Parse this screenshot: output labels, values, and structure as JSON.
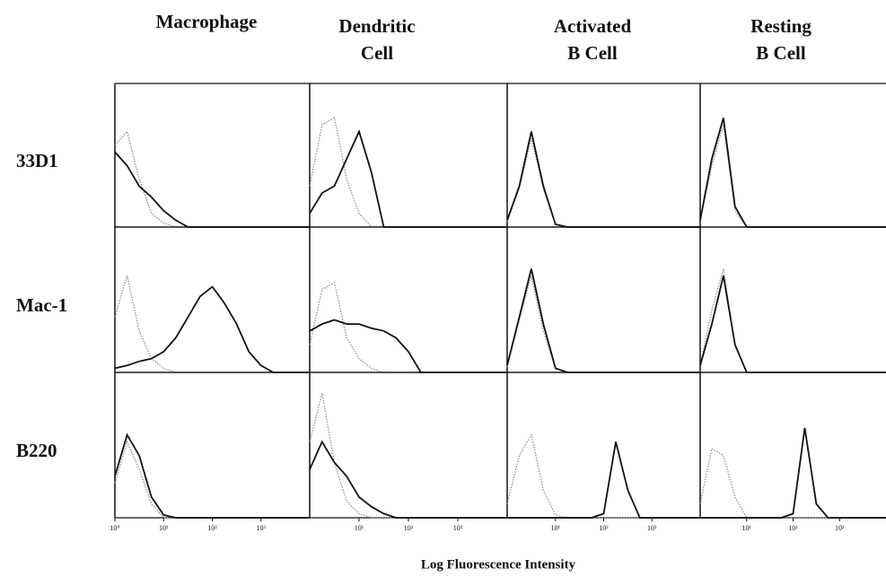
{
  "column_headers": [
    [
      "Macrophage"
    ],
    [
      "Dendritic",
      "Cell"
    ],
    [
      "Activated",
      "B Cell"
    ],
    [
      "Resting",
      "B Cell"
    ]
  ],
  "row_labels": [
    "33D1",
    "Mac-1",
    "B220"
  ],
  "xlabel": "Log Fluorescence Intensity",
  "chart_data": [
    {
      "type": "line",
      "log_x": true,
      "xlim": [
        1,
        10000
      ],
      "ylim": [
        0,
        100
      ],
      "x": [
        1,
        1.78,
        3.16,
        5.62,
        10,
        17.8,
        31.6,
        56.2,
        100,
        178,
        316,
        562,
        1000,
        1780,
        3160,
        5620,
        10000
      ],
      "series": [
        {
          "color": "#888888",
          "style": "dotted",
          "values": [
            60,
            70,
            35,
            10,
            3,
            0,
            0,
            0,
            0,
            0,
            0,
            0,
            0,
            0,
            0,
            0,
            0
          ]
        },
        {
          "color": "#111111",
          "style": "solid",
          "values": [
            55,
            45,
            30,
            22,
            12,
            5,
            0,
            0,
            0,
            0,
            0,
            0,
            0,
            0,
            0,
            0,
            0
          ]
        }
      ]
    },
    {
      "type": "line",
      "log_x": true,
      "xlim": [
        1,
        10000
      ],
      "ylim": [
        0,
        100
      ],
      "x": [
        1,
        1.78,
        3.16,
        5.62,
        10,
        17.8,
        31.6,
        56.2,
        100,
        178,
        316,
        562,
        1000,
        1780,
        3160,
        5620,
        10000
      ],
      "series": [
        {
          "color": "#888888",
          "style": "dotted",
          "values": [
            30,
            75,
            80,
            35,
            10,
            0,
            0,
            0,
            0,
            0,
            0,
            0,
            0,
            0,
            0,
            0,
            0
          ]
        },
        {
          "color": "#111111",
          "style": "solid",
          "values": [
            10,
            25,
            30,
            50,
            70,
            40,
            0,
            0,
            0,
            0,
            0,
            0,
            0,
            0,
            0,
            0,
            0
          ]
        }
      ]
    },
    {
      "type": "line",
      "log_x": true,
      "xlim": [
        1,
        10000
      ],
      "ylim": [
        0,
        100
      ],
      "x": [
        1,
        1.78,
        3.16,
        5.62,
        10,
        17.8,
        31.6,
        56.2,
        100,
        178,
        316,
        562,
        1000,
        1780,
        3160,
        5620,
        10000
      ],
      "series": [
        {
          "color": "#888888",
          "style": "dotted",
          "values": [
            4,
            28,
            65,
            28,
            2,
            0,
            0,
            0,
            0,
            0,
            0,
            0,
            0,
            0,
            0,
            0,
            0
          ]
        },
        {
          "color": "#111111",
          "style": "solid",
          "values": [
            5,
            30,
            70,
            30,
            2,
            0,
            0,
            0,
            0,
            0,
            0,
            0,
            0,
            0,
            0,
            0,
            0
          ]
        }
      ]
    },
    {
      "type": "line",
      "log_x": true,
      "xlim": [
        1,
        10000
      ],
      "ylim": [
        0,
        100
      ],
      "x": [
        1,
        1.78,
        3.16,
        5.62,
        10,
        17.8,
        31.6,
        56.2,
        100,
        178,
        316,
        562,
        1000,
        1780,
        3160,
        5620,
        10000
      ],
      "series": [
        {
          "color": "#888888",
          "style": "dotted",
          "values": [
            5,
            45,
            75,
            12,
            0,
            0,
            0,
            0,
            0,
            0,
            0,
            0,
            0,
            0,
            0,
            0,
            0
          ]
        },
        {
          "color": "#111111",
          "style": "solid",
          "values": [
            5,
            50,
            80,
            15,
            0,
            0,
            0,
            0,
            0,
            0,
            0,
            0,
            0,
            0,
            0,
            0,
            0
          ]
        }
      ]
    },
    {
      "type": "line",
      "log_x": true,
      "xlim": [
        1,
        10000
      ],
      "ylim": [
        0,
        100
      ],
      "x": [
        1,
        1.78,
        3.16,
        5.62,
        10,
        17.8,
        31.6,
        56.2,
        100,
        178,
        316,
        562,
        1000,
        1780,
        3160,
        5620,
        10000
      ],
      "series": [
        {
          "color": "#888888",
          "style": "dotted",
          "values": [
            40,
            70,
            30,
            10,
            3,
            0,
            0,
            0,
            0,
            0,
            0,
            0,
            0,
            0,
            0,
            0,
            0
          ]
        },
        {
          "color": "#111111",
          "style": "solid",
          "values": [
            3,
            5,
            8,
            10,
            15,
            25,
            40,
            55,
            62,
            50,
            35,
            15,
            5,
            0,
            0,
            0,
            0
          ]
        }
      ]
    },
    {
      "type": "line",
      "log_x": true,
      "xlim": [
        1,
        10000
      ],
      "ylim": [
        0,
        100
      ],
      "x": [
        1,
        1.78,
        3.16,
        5.62,
        10,
        17.8,
        31.6,
        56.2,
        100,
        178,
        316,
        562,
        1000,
        1780,
        3160,
        5620,
        10000
      ],
      "series": [
        {
          "color": "#888888",
          "style": "dotted",
          "values": [
            20,
            60,
            65,
            25,
            10,
            3,
            0,
            0,
            0,
            0,
            0,
            0,
            0,
            0,
            0,
            0,
            0
          ]
        },
        {
          "color": "#111111",
          "style": "solid",
          "values": [
            30,
            35,
            38,
            35,
            35,
            32,
            30,
            25,
            15,
            0,
            0,
            0,
            0,
            0,
            0,
            0,
            0
          ]
        }
      ]
    },
    {
      "type": "line",
      "log_x": true,
      "xlim": [
        1,
        10000
      ],
      "ylim": [
        0,
        100
      ],
      "x": [
        1,
        1.78,
        3.16,
        5.62,
        10,
        17.8,
        31.6,
        56.2,
        100,
        178,
        316,
        562,
        1000,
        1780,
        3160,
        5620,
        10000
      ],
      "series": [
        {
          "color": "#888888",
          "style": "dotted",
          "values": [
            4,
            38,
            70,
            30,
            3,
            0,
            0,
            0,
            0,
            0,
            0,
            0,
            0,
            0,
            0,
            0,
            0
          ]
        },
        {
          "color": "#111111",
          "style": "solid",
          "values": [
            5,
            40,
            75,
            35,
            3,
            0,
            0,
            0,
            0,
            0,
            0,
            0,
            0,
            0,
            0,
            0,
            0
          ]
        }
      ]
    },
    {
      "type": "line",
      "log_x": true,
      "xlim": [
        1,
        10000
      ],
      "ylim": [
        0,
        100
      ],
      "x": [
        1,
        1.78,
        3.16,
        5.62,
        10,
        17.8,
        31.6,
        56.2,
        100,
        178,
        316,
        562,
        1000,
        1780,
        3160,
        5620,
        10000
      ],
      "series": [
        {
          "color": "#888888",
          "style": "dotted",
          "values": [
            5,
            45,
            75,
            20,
            0,
            0,
            0,
            0,
            0,
            0,
            0,
            0,
            0,
            0,
            0,
            0,
            0
          ]
        },
        {
          "color": "#111111",
          "style": "solid",
          "values": [
            5,
            35,
            70,
            20,
            0,
            0,
            0,
            0,
            0,
            0,
            0,
            0,
            0,
            0,
            0,
            0,
            0
          ]
        }
      ]
    },
    {
      "type": "line",
      "log_x": true,
      "xlim": [
        1,
        10000
      ],
      "ylim": [
        0,
        100
      ],
      "xticks": [
        {
          "value": 1,
          "label": "10⁰"
        },
        {
          "value": 10,
          "label": "10¹"
        },
        {
          "value": 100,
          "label": "10²"
        },
        {
          "value": 1000,
          "label": "10³"
        }
      ],
      "x": [
        1,
        1.78,
        3.16,
        5.62,
        10,
        17.8,
        31.6,
        56.2,
        100,
        178,
        316,
        562,
        1000,
        1780,
        3160,
        5620,
        10000
      ],
      "series": [
        {
          "color": "#888888",
          "style": "dotted",
          "values": [
            25,
            55,
            35,
            10,
            0,
            0,
            0,
            0,
            0,
            0,
            0,
            0,
            0,
            0,
            0,
            0,
            0
          ]
        },
        {
          "color": "#111111",
          "style": "solid",
          "values": [
            30,
            60,
            45,
            15,
            2,
            0,
            0,
            0,
            0,
            0,
            0,
            0,
            0,
            0,
            0,
            0,
            0
          ]
        }
      ]
    },
    {
      "type": "line",
      "log_x": true,
      "xlim": [
        1,
        10000
      ],
      "ylim": [
        0,
        100
      ],
      "xticks": [
        {
          "value": 10,
          "label": "10¹"
        },
        {
          "value": 100,
          "label": "10²"
        },
        {
          "value": 1000,
          "label": "10³"
        }
      ],
      "x": [
        1,
        1.78,
        3.16,
        5.62,
        10,
        17.8,
        31.6,
        56.2,
        100,
        178,
        316,
        562,
        1000,
        1780,
        3160,
        5620,
        10000
      ],
      "series": [
        {
          "color": "#888888",
          "style": "dotted",
          "values": [
            55,
            90,
            40,
            12,
            3,
            0,
            0,
            0,
            0,
            0,
            0,
            0,
            0,
            0,
            0,
            0,
            0
          ]
        },
        {
          "color": "#111111",
          "style": "solid",
          "values": [
            35,
            55,
            40,
            30,
            15,
            8,
            3,
            0,
            0,
            0,
            0,
            0,
            0,
            0,
            0,
            0,
            0
          ]
        }
      ]
    },
    {
      "type": "line",
      "log_x": true,
      "xlim": [
        1,
        10000
      ],
      "ylim": [
        0,
        100
      ],
      "xticks": [
        {
          "value": 10,
          "label": "10¹"
        },
        {
          "value": 100,
          "label": "10²"
        },
        {
          "value": 1000,
          "label": "10³"
        }
      ],
      "x": [
        1,
        1.78,
        3.16,
        5.62,
        10,
        17.8,
        31.6,
        56.2,
        100,
        178,
        316,
        562,
        1000,
        1780,
        3160,
        5620,
        10000
      ],
      "series": [
        {
          "color": "#888888",
          "style": "dotted",
          "values": [
            10,
            45,
            60,
            20,
            2,
            0,
            0,
            0,
            0,
            0,
            0,
            0,
            0,
            0,
            0,
            0,
            0
          ]
        },
        {
          "color": "#111111",
          "style": "solid",
          "values": [
            0,
            0,
            0,
            0,
            0,
            0,
            0,
            0,
            3,
            55,
            20,
            0,
            0,
            0,
            0,
            0,
            0
          ]
        }
      ]
    },
    {
      "type": "line",
      "log_x": true,
      "xlim": [
        1,
        10000
      ],
      "ylim": [
        0,
        100
      ],
      "xticks": [
        {
          "value": 10,
          "label": "10¹"
        },
        {
          "value": 100,
          "label": "10²"
        },
        {
          "value": 1000,
          "label": "10³"
        }
      ],
      "x": [
        1,
        1.78,
        3.16,
        5.62,
        10,
        17.8,
        31.6,
        56.2,
        100,
        178,
        316,
        562,
        1000,
        1780,
        3160,
        5620,
        10000
      ],
      "series": [
        {
          "color": "#888888",
          "style": "dotted",
          "values": [
            10,
            50,
            45,
            15,
            0,
            0,
            0,
            0,
            0,
            0,
            0,
            0,
            0,
            0,
            0,
            0,
            0
          ]
        },
        {
          "color": "#111111",
          "style": "solid",
          "values": [
            0,
            0,
            0,
            0,
            0,
            0,
            0,
            0,
            3,
            65,
            10,
            0,
            0,
            0,
            0,
            0,
            0
          ]
        }
      ]
    }
  ]
}
